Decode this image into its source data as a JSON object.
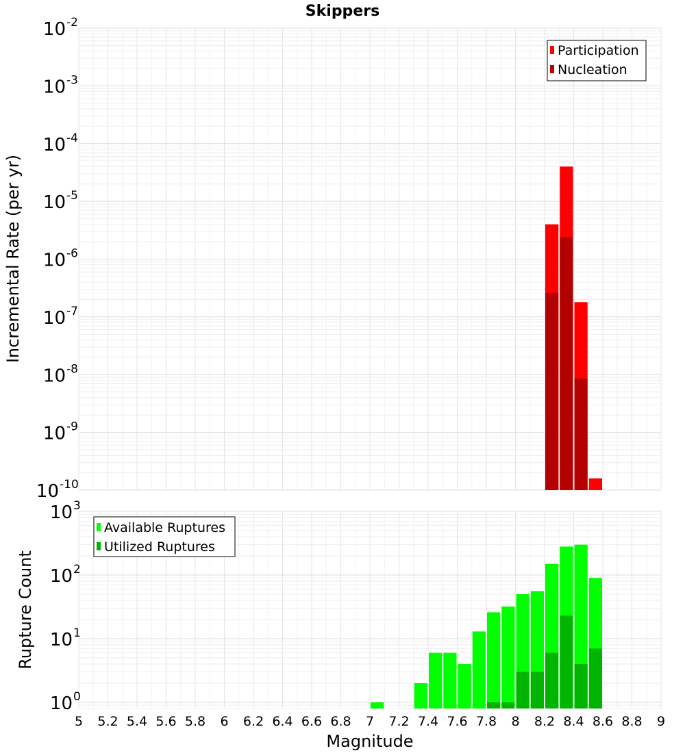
{
  "chart_data": [
    {
      "type": "bar",
      "panel": "top",
      "title": "Skippers",
      "xlabel": "Magnitude",
      "ylabel": "Incremental Rate (per yr)",
      "yscale": "log",
      "ylim": [
        1e-10,
        0.01
      ],
      "xlim": [
        5,
        9
      ],
      "bin_width": 0.1,
      "y_tick_labels": [
        {
          "value": 0.01,
          "base": "10",
          "exp": "-2"
        },
        {
          "value": 0.001,
          "base": "10",
          "exp": "-3"
        },
        {
          "value": 0.0001,
          "base": "10",
          "exp": "-4"
        },
        {
          "value": 1e-05,
          "base": "10",
          "exp": "-5"
        },
        {
          "value": 1e-06,
          "base": "10",
          "exp": "-6"
        },
        {
          "value": 1e-07,
          "base": "10",
          "exp": "-7"
        },
        {
          "value": 1e-08,
          "base": "10",
          "exp": "-8"
        },
        {
          "value": 1e-09,
          "base": "10",
          "exp": "-9"
        },
        {
          "value": 1e-10,
          "base": "10",
          "exp": "-10"
        }
      ],
      "legend": {
        "position": "top-right"
      },
      "series": [
        {
          "name": "Participation",
          "color": "#ff0000",
          "x": [
            8.25,
            8.35,
            8.45,
            8.55
          ],
          "values": [
            4e-06,
            4e-05,
            1.8e-07,
            1.6e-10
          ]
        },
        {
          "name": "Nucleation",
          "color": "#b30000",
          "x": [
            8.25,
            8.35,
            8.45
          ],
          "values": [
            2.6e-07,
            2.4e-06,
            8.5e-09
          ]
        }
      ]
    },
    {
      "type": "bar",
      "panel": "bottom",
      "xlabel": "Magnitude",
      "ylabel": "Rupture Count",
      "yscale": "log",
      "ylim": [
        0.8,
        1000
      ],
      "xlim": [
        5,
        9
      ],
      "bin_width": 0.1,
      "x_tick_labels": [
        "5",
        "5.2",
        "5.4",
        "5.6",
        "5.8",
        "6",
        "6.2",
        "6.4",
        "6.6",
        "6.8",
        "7",
        "7.2",
        "7.4",
        "7.6",
        "7.8",
        "8",
        "8.2",
        "8.4",
        "8.6",
        "8.8",
        "9"
      ],
      "y_tick_labels": [
        {
          "value": 1000,
          "base": "10",
          "exp": "3"
        },
        {
          "value": 100,
          "base": "10",
          "exp": "2"
        },
        {
          "value": 10,
          "base": "10",
          "exp": "1"
        },
        {
          "value": 1,
          "base": "10",
          "exp": "0"
        }
      ],
      "legend": {
        "position": "top-left"
      },
      "series": [
        {
          "name": "Available Ruptures",
          "color": "#00ff00",
          "x": [
            7.05,
            7.35,
            7.45,
            7.55,
            7.65,
            7.75,
            7.85,
            7.95,
            8.05,
            8.15,
            8.25,
            8.35,
            8.45,
            8.55
          ],
          "values": [
            1,
            2,
            6,
            6,
            4,
            13,
            26,
            32,
            50,
            56,
            150,
            280,
            300,
            90
          ]
        },
        {
          "name": "Utilized Ruptures",
          "color": "#00b400",
          "x": [
            7.85,
            7.95,
            8.05,
            8.15,
            8.25,
            8.35,
            8.45,
            8.55
          ],
          "values": [
            1,
            1,
            3,
            3,
            6,
            23,
            4,
            7
          ]
        }
      ]
    }
  ]
}
